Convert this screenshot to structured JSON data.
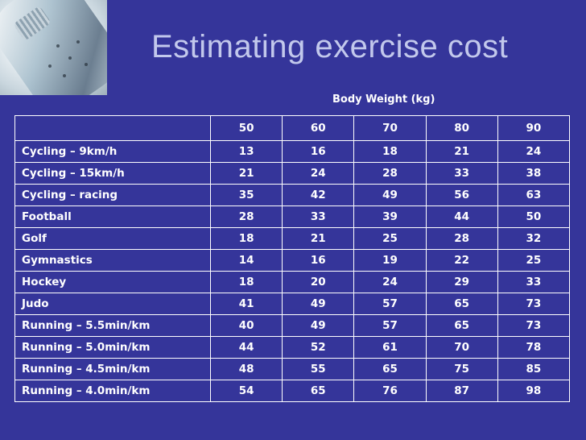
{
  "slide": {
    "title": "Estimating exercise cost",
    "column_group_label": "Body Weight (kg)"
  },
  "table": {
    "weights": [
      "50",
      "60",
      "70",
      "80",
      "90"
    ],
    "rows": [
      {
        "activity": "Cycling – 9km/h",
        "values": [
          "13",
          "16",
          "18",
          "21",
          "24"
        ]
      },
      {
        "activity": "Cycling – 15km/h",
        "values": [
          "21",
          "24",
          "28",
          "33",
          "38"
        ]
      },
      {
        "activity": "Cycling – racing",
        "values": [
          "35",
          "42",
          "49",
          "56",
          "63"
        ]
      },
      {
        "activity": "Football",
        "values": [
          "28",
          "33",
          "39",
          "44",
          "50"
        ]
      },
      {
        "activity": "Golf",
        "values": [
          "18",
          "21",
          "25",
          "28",
          "32"
        ]
      },
      {
        "activity": "Gymnastics",
        "values": [
          "14",
          "16",
          "19",
          "22",
          "25"
        ]
      },
      {
        "activity": "Hockey",
        "values": [
          "18",
          "20",
          "24",
          "29",
          "33"
        ]
      },
      {
        "activity": "Judo",
        "values": [
          "41",
          "49",
          "57",
          "65",
          "73"
        ]
      },
      {
        "activity": "Running – 5.5min/km",
        "values": [
          "40",
          "49",
          "57",
          "65",
          "73"
        ]
      },
      {
        "activity": "Running – 5.0min/km",
        "values": [
          "44",
          "52",
          "61",
          "70",
          "78"
        ]
      },
      {
        "activity": "Running – 4.5min/km",
        "values": [
          "48",
          "55",
          "65",
          "75",
          "85"
        ]
      },
      {
        "activity": "Running – 4.0min/km",
        "values": [
          "54",
          "65",
          "76",
          "87",
          "98"
        ]
      }
    ]
  },
  "colors": {
    "background": "#35359a",
    "title": "#c2c8ec",
    "table_text": "#ffffff"
  }
}
